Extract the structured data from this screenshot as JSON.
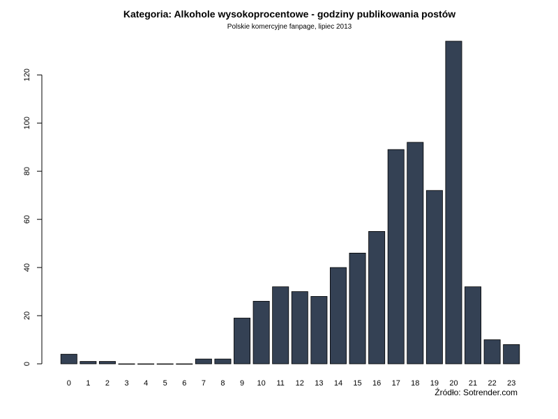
{
  "chart_data": {
    "type": "bar",
    "title": "Kategoria: Alkohole wysokoprocentowe - godziny publikowania postów",
    "subtitle": "Polskie komercyjne fanpage, lipiec 2013",
    "source": "Źródło: Sotrender.com",
    "xlabel": "",
    "ylabel": "",
    "categories": [
      "0",
      "1",
      "2",
      "3",
      "4",
      "5",
      "6",
      "7",
      "8",
      "9",
      "10",
      "11",
      "12",
      "13",
      "14",
      "15",
      "16",
      "17",
      "18",
      "19",
      "20",
      "21",
      "22",
      "23"
    ],
    "values": [
      4,
      1,
      1,
      0,
      0,
      0,
      0,
      2,
      2,
      19,
      26,
      32,
      30,
      28,
      40,
      46,
      55,
      89,
      92,
      72,
      134,
      32,
      10,
      8
    ],
    "yticks": [
      "0",
      "20",
      "40",
      "60",
      "80",
      "100",
      "120"
    ],
    "ylim": [
      0,
      134
    ],
    "bar_color": "#344154",
    "grid": false
  }
}
